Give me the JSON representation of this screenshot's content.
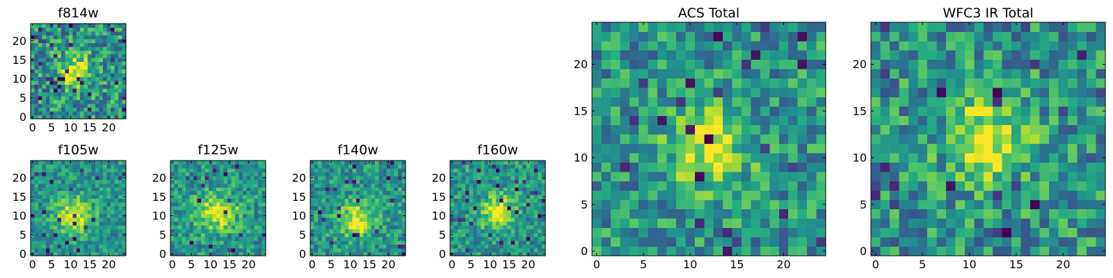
{
  "chart_data": [
    {
      "type": "heatmap",
      "title": "f814w",
      "grid_size": 25,
      "xlim": [
        -0.5,
        24.5
      ],
      "ylim": [
        -0.5,
        24.5
      ],
      "xticks": [
        0,
        5,
        10,
        15,
        20
      ],
      "yticks": [
        0,
        5,
        10,
        15,
        20
      ],
      "colormap": "viridis",
      "source_center": [
        11,
        12
      ],
      "source_sigma": 3.0,
      "noise_level": 0.34,
      "outlier_rate": 0.06,
      "seed": 11
    },
    {
      "type": "heatmap",
      "title": "f105w",
      "grid_size": 25,
      "xlim": [
        -0.5,
        24.5
      ],
      "ylim": [
        -0.5,
        24.5
      ],
      "xticks": [
        0,
        5,
        10,
        15,
        20
      ],
      "yticks": [
        0,
        5,
        10,
        15,
        20
      ],
      "colormap": "viridis",
      "source_center": [
        11,
        10
      ],
      "source_sigma": 3.4,
      "noise_level": 0.22,
      "outlier_rate": 0.03,
      "seed": 23
    },
    {
      "type": "heatmap",
      "title": "f125w",
      "grid_size": 25,
      "xlim": [
        -0.5,
        24.5
      ],
      "ylim": [
        -0.5,
        24.5
      ],
      "xticks": [
        0,
        5,
        10,
        15,
        20
      ],
      "yticks": [
        0,
        5,
        10,
        15,
        20
      ],
      "colormap": "viridis",
      "source_center": [
        12,
        11
      ],
      "source_sigma": 3.6,
      "noise_level": 0.25,
      "outlier_rate": 0.02,
      "seed": 37
    },
    {
      "type": "heatmap",
      "title": "f140w",
      "grid_size": 25,
      "xlim": [
        -0.5,
        24.5
      ],
      "ylim": [
        -0.5,
        24.5
      ],
      "xticks": [
        0,
        5,
        10,
        15,
        20
      ],
      "yticks": [
        0,
        5,
        10,
        15,
        20
      ],
      "colormap": "viridis",
      "source_center": [
        12,
        9
      ],
      "source_sigma": 3.3,
      "noise_level": 0.25,
      "outlier_rate": 0.03,
      "seed": 41
    },
    {
      "type": "heatmap",
      "title": "f160w",
      "grid_size": 25,
      "xlim": [
        -0.5,
        24.5
      ],
      "ylim": [
        -0.5,
        24.5
      ],
      "xticks": [
        0,
        5,
        10,
        15,
        20
      ],
      "yticks": [
        0,
        5,
        10,
        15,
        20
      ],
      "colormap": "viridis",
      "source_center": [
        12,
        11
      ],
      "source_sigma": 3.2,
      "noise_level": 0.24,
      "outlier_rate": 0.04,
      "seed": 53
    },
    {
      "type": "heatmap",
      "title": "ACS Total",
      "grid_size": 25,
      "xlim": [
        -0.5,
        24.5
      ],
      "ylim": [
        -0.5,
        24.5
      ],
      "xticks": [
        0,
        5,
        10,
        15,
        20
      ],
      "yticks": [
        0,
        5,
        10,
        15,
        20
      ],
      "colormap": "viridis",
      "source_center": [
        12,
        11
      ],
      "source_sigma": 3.0,
      "noise_level": 0.3,
      "outlier_rate": 0.04,
      "seed": 67
    },
    {
      "type": "heatmap",
      "title": "WFC3 IR Total",
      "grid_size": 25,
      "xlim": [
        -0.5,
        24.5
      ],
      "ylim": [
        -0.5,
        24.5
      ],
      "xticks": [
        0,
        5,
        10,
        15,
        20
      ],
      "yticks": [
        0,
        5,
        10,
        15,
        20
      ],
      "colormap": "viridis",
      "source_center": [
        12,
        12
      ],
      "source_sigma": 3.0,
      "noise_level": 0.32,
      "outlier_rate": 0.05,
      "seed": 79
    }
  ]
}
